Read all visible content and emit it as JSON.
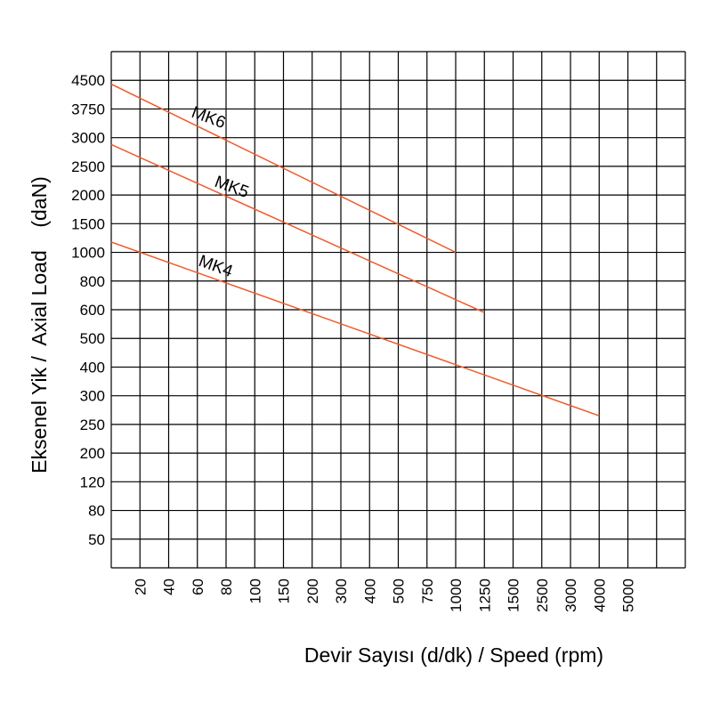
{
  "chart_data": {
    "type": "line",
    "title": "",
    "xlabel": "Devir Sayısı (d/dk) / Speed (rpm)",
    "ylabel": "Eksenel Yik /  Axial Load    (daN)",
    "x_scale": "categorical (equal spacing between listed ticks)",
    "y_scale": "categorical (equal spacing between listed ticks)",
    "x_ticks": [
      "20",
      "40",
      "60",
      "80",
      "100",
      "150",
      "200",
      "300",
      "400",
      "500",
      "750",
      "1000",
      "1250",
      "1500",
      "2500",
      "3000",
      "4000",
      "5000"
    ],
    "y_ticks": [
      "4500",
      "3750",
      "3000",
      "2500",
      "2000",
      "1500",
      "1000",
      "800",
      "600",
      "500",
      "400",
      "300",
      "250",
      "200",
      "120",
      "80",
      "50"
    ],
    "grid": true,
    "line_color": "#f05a28",
    "series": [
      {
        "name": "MK6",
        "points": [
          [
            0,
            4400
          ],
          [
            1000,
            1000
          ]
        ]
      },
      {
        "name": "MK5",
        "points": [
          [
            0,
            2880
          ],
          [
            1250,
            590
          ]
        ]
      },
      {
        "name": "MK4",
        "points": [
          [
            0,
            1180
          ],
          [
            4000,
            265
          ]
        ]
      }
    ]
  }
}
